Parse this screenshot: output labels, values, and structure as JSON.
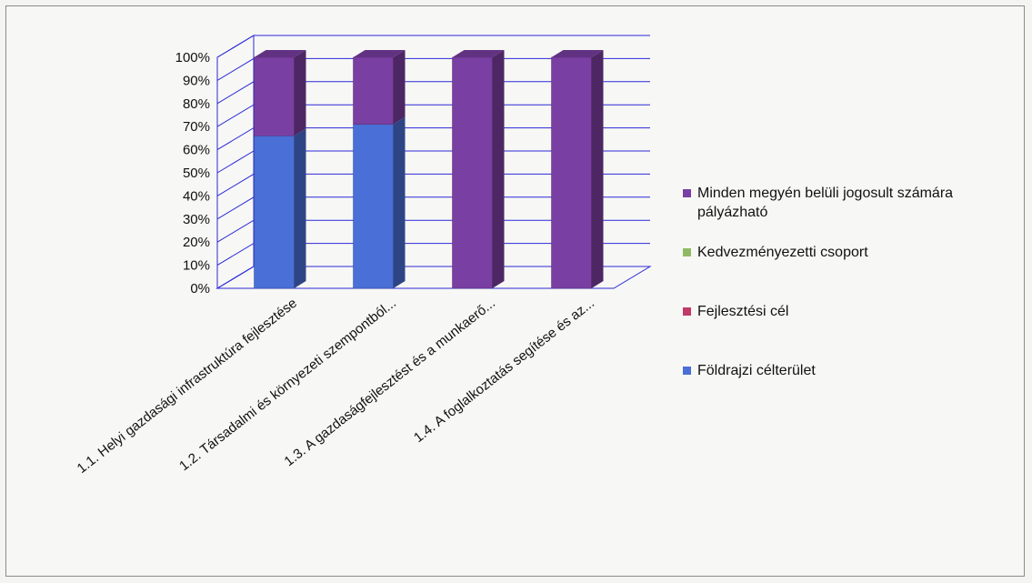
{
  "chart_data": {
    "type": "bar",
    "stacked": true,
    "percent_stacked": true,
    "three_d": true,
    "categories": [
      "1.1. Helyi gazdasági infrastruktúra fejlesztése",
      "1.2. Társadalmi és környezeti szempontból...",
      "1.3. A gazdaságfejlesztést és a munkaerő...",
      "1.4. A foglalkoztatás segítése és az..."
    ],
    "series": [
      {
        "name": "Földrajzi célterület",
        "color": "#4a6fd6",
        "values": [
          66,
          71,
          0,
          0
        ]
      },
      {
        "name": "Fejlesztési cél",
        "color": "#c0396a",
        "values": [
          0,
          0,
          0,
          0
        ]
      },
      {
        "name": "Kedvezményezetti csoport",
        "color": "#8fba63",
        "values": [
          0,
          0,
          0,
          0
        ]
      },
      {
        "name": "Minden megyén belüli jogosult számára pályázható",
        "color": "#7a3fa2",
        "values": [
          34,
          29,
          100,
          100
        ]
      }
    ],
    "yticks": [
      "0%",
      "10%",
      "20%",
      "30%",
      "40%",
      "50%",
      "60%",
      "70%",
      "80%",
      "90%",
      "100%"
    ],
    "ylim": [
      0,
      100
    ],
    "legend_position": "right",
    "legend": [
      {
        "label_lines": [
          "Minden megyén belüli jogosult számára",
          "pályázható"
        ],
        "color": "#7a3fa2"
      },
      {
        "label_lines": [
          "Kedvezményezetti csoport"
        ],
        "color": "#8fba63"
      },
      {
        "label_lines": [
          "Fejlesztési cél"
        ],
        "color": "#c0396a"
      },
      {
        "label_lines": [
          "Földrajzi célterület"
        ],
        "color": "#4a6fd6"
      }
    ]
  }
}
